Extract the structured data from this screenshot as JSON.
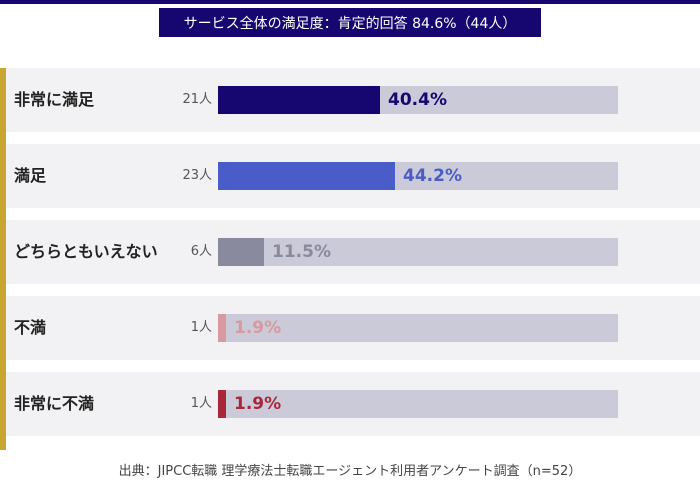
{
  "title": "サービス全体の満足度：肯定的回答 84.6%（44人）",
  "footer": "出典：JIPCC転職 理学療法士転職エージェント利用者アンケート調査（n=52）",
  "colors": {
    "header": "#16066f",
    "accent": "#c8a632",
    "track": "#cbcad8"
  },
  "chart_data": {
    "type": "bar",
    "orientation": "horizontal",
    "title": "サービス全体の満足度：肯定的回答 84.6%（44人）",
    "categories": [
      "非常に満足",
      "満足",
      "どちらともいえない",
      "不満",
      "非常に不満"
    ],
    "counts": [
      "21人",
      "23人",
      "6人",
      "1人",
      "1人"
    ],
    "values": [
      40.4,
      44.2,
      11.5,
      1.9,
      1.9
    ],
    "value_labels": [
      "40.4%",
      "44.2%",
      "11.5%",
      "1.9%",
      "1.9%"
    ],
    "colors": [
      "#16066f",
      "#4a5cc8",
      "#8a8a9e",
      "#d89a9e",
      "#a8283a"
    ],
    "xlim": [
      0,
      100
    ]
  }
}
